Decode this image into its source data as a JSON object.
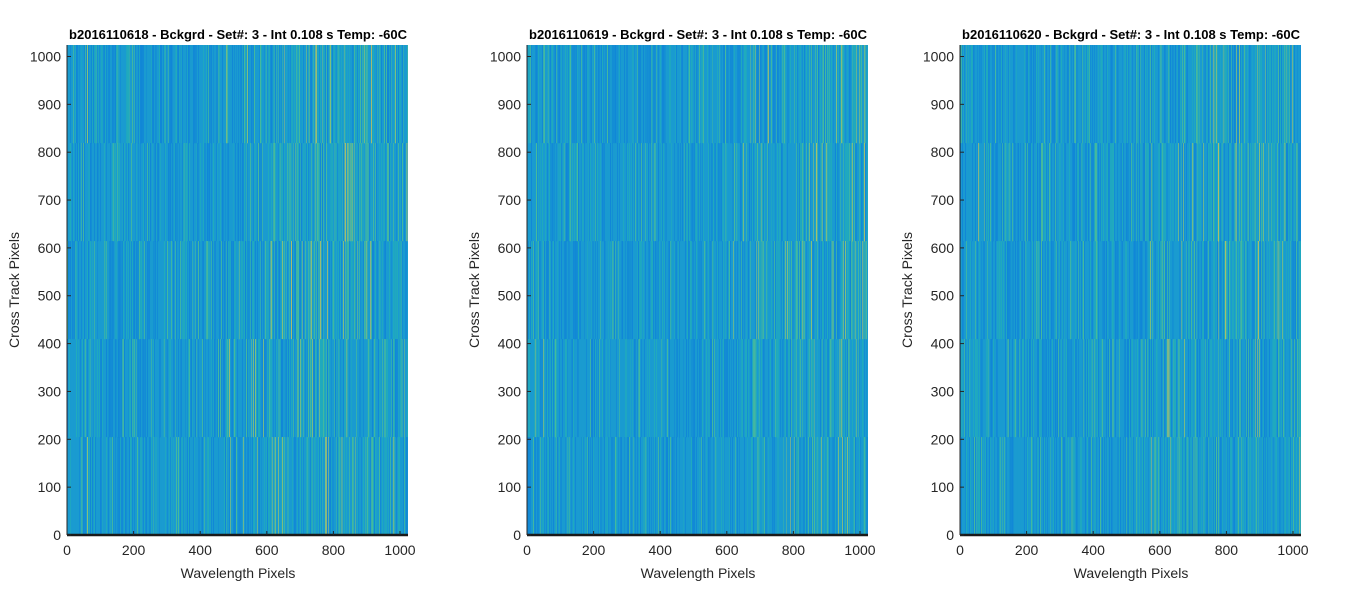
{
  "chart_data": [
    {
      "type": "heatmap",
      "title": "b2016110618 - Bckgrd - Set#: 3 - Int 0.108 s Temp: -60C",
      "xlabel": "Wavelength Pixels",
      "ylabel": "Cross Track Pixels",
      "xlim": [
        0,
        1024
      ],
      "ylim": [
        0,
        1024
      ],
      "xticks": [
        0,
        200,
        400,
        600,
        800,
        1000
      ],
      "yticks": [
        0,
        100,
        200,
        300,
        400,
        500,
        600,
        700,
        800,
        900,
        1000
      ],
      "xtick_labels": [
        "0",
        "200",
        "400",
        "600",
        "800",
        "1000"
      ],
      "ytick_labels": [
        "0",
        "100",
        "200",
        "300",
        "400",
        "500",
        "600",
        "700",
        "800",
        "900",
        "1000"
      ],
      "colormap": [
        "#0f83d8",
        "#1a9bd0",
        "#22aeb8",
        "#4ebf93",
        "#9bc76a",
        "#c8c35a"
      ],
      "hotspot_x": 820
    },
    {
      "type": "heatmap",
      "title": "b2016110619 - Bckgrd - Set#: 3 - Int 0.108 s Temp: -60C",
      "xlabel": "Wavelength Pixels",
      "ylabel": "Cross Track Pixels",
      "xlim": [
        0,
        1024
      ],
      "ylim": [
        0,
        1024
      ],
      "xticks": [
        0,
        200,
        400,
        600,
        800,
        1000
      ],
      "yticks": [
        0,
        100,
        200,
        300,
        400,
        500,
        600,
        700,
        800,
        900,
        1000
      ],
      "xtick_labels": [
        "0",
        "200",
        "400",
        "600",
        "800",
        "1000"
      ],
      "ytick_labels": [
        "0",
        "100",
        "200",
        "300",
        "400",
        "500",
        "600",
        "700",
        "800",
        "900",
        "1000"
      ],
      "colormap": [
        "#0f83d8",
        "#1a9bd0",
        "#22aeb8",
        "#4ebf93",
        "#9bc76a",
        "#c8c35a"
      ],
      "hotspot_x": 950
    },
    {
      "type": "heatmap",
      "title": "b2016110620 - Bckgrd - Set#: 3 - Int 0.108 s Temp: -60C",
      "xlabel": "Wavelength Pixels",
      "ylabel": "Cross Track Pixels",
      "xlim": [
        0,
        1024
      ],
      "ylim": [
        0,
        1024
      ],
      "xticks": [
        0,
        200,
        400,
        600,
        800,
        1000
      ],
      "yticks": [
        0,
        100,
        200,
        300,
        400,
        500,
        600,
        700,
        800,
        900,
        1000
      ],
      "xtick_labels": [
        "0",
        "200",
        "400",
        "600",
        "800",
        "1000"
      ],
      "ytick_labels": [
        "0",
        "100",
        "200",
        "300",
        "400",
        "500",
        "600",
        "700",
        "800",
        "900",
        "1000"
      ],
      "colormap": [
        "#0f83d8",
        "#1a9bd0",
        "#22aeb8",
        "#4ebf93",
        "#9bc76a",
        "#c8c35a"
      ],
      "hotspot_x": 880
    }
  ]
}
